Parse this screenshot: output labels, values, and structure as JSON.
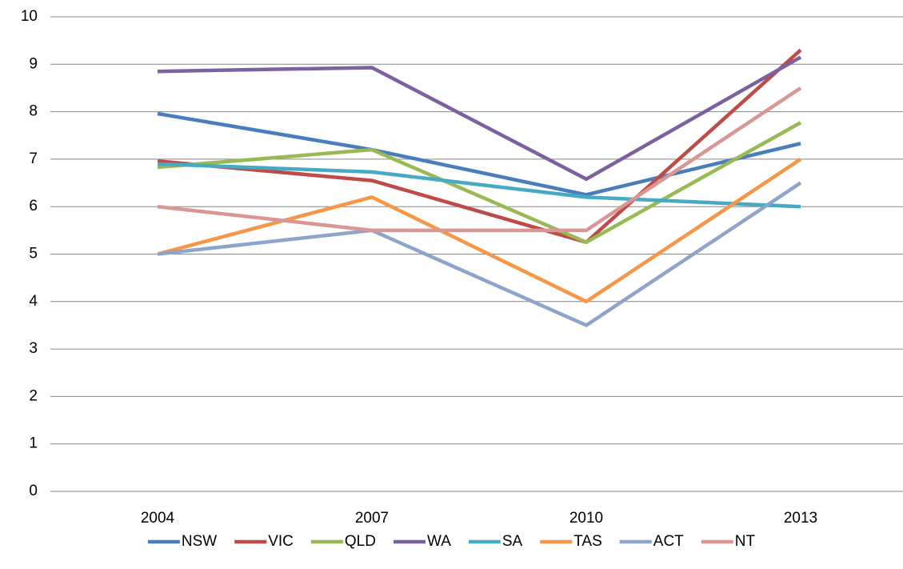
{
  "chart_data": {
    "type": "line",
    "categories": [
      "2004",
      "2007",
      "2010",
      "2013"
    ],
    "series": [
      {
        "name": "NSW",
        "color": "#4a7ebb",
        "values": [
          7.96,
          7.2,
          6.25,
          7.33
        ]
      },
      {
        "name": "VIC",
        "color": "#be4b48",
        "values": [
          6.96,
          6.55,
          5.25,
          9.3
        ]
      },
      {
        "name": "QLD",
        "color": "#98b954",
        "values": [
          6.83,
          7.2,
          5.25,
          7.77
        ]
      },
      {
        "name": "WA",
        "color": "#7d60a0",
        "values": [
          8.85,
          8.93,
          6.58,
          9.15
        ]
      },
      {
        "name": "SA",
        "color": "#46aac5",
        "values": [
          6.9,
          6.73,
          6.2,
          6.0
        ]
      },
      {
        "name": "TAS",
        "color": "#f79646",
        "values": [
          5.0,
          6.2,
          4.0,
          7.0
        ]
      },
      {
        "name": "ACT",
        "color": "#8ea5cb",
        "values": [
          5.0,
          5.5,
          3.5,
          6.5
        ]
      },
      {
        "name": "NT",
        "color": "#d99694",
        "values": [
          6.0,
          5.5,
          5.5,
          8.5
        ]
      }
    ],
    "ylim": [
      0,
      10
    ],
    "yticks": [
      0,
      1,
      2,
      3,
      4,
      5,
      6,
      7,
      8,
      9,
      10
    ],
    "grid": true,
    "legend": "bottom"
  }
}
